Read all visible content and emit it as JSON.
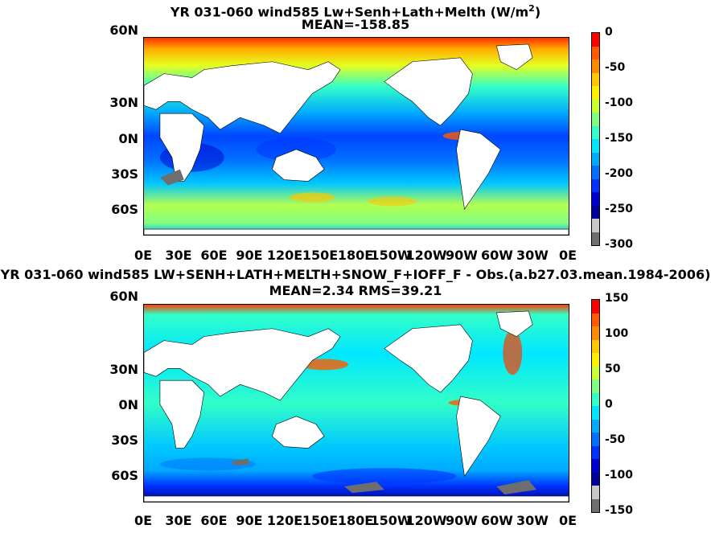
{
  "chart_data": [
    {
      "type": "heatmap",
      "title": "YR 031-060 wind585 Lw+Senh+Lath+Melth (W/m",
      "title_sup": "2",
      "title_tail": ")",
      "subtitle": "MEAN=-158.85",
      "xticks": [
        "0E",
        "30E",
        "60E",
        "90E",
        "120E",
        "150E",
        "180E",
        "150W",
        "120W",
        "90W",
        "60W",
        "30W",
        "0E"
      ],
      "yticks": [
        "60N",
        "30N",
        "0N",
        "30S",
        "60S"
      ],
      "colorbar_ticks": [
        "0",
        "-50",
        "-100",
        "-150",
        "-200",
        "-250",
        "-300"
      ],
      "zlim": [
        -300,
        0
      ],
      "colorbar_colors": [
        "#ff0000",
        "#ff5a00",
        "#ff8c00",
        "#ffc800",
        "#fff000",
        "#c8ff32",
        "#82ff82",
        "#32ffc8",
        "#00e6ff",
        "#00aaff",
        "#0070ff",
        "#0032ff",
        "#0000d2",
        "#00009b",
        "#c8c8c8",
        "#6e6e6e"
      ]
    },
    {
      "type": "heatmap",
      "title": "YR 031-060 wind585 LW+SENH+LATH+MELTH+SNOW_F+IOFF_F - Obs.(a.b27.03.mean.1984-2006)",
      "subtitle": "MEAN=2.34 RMS=39.21",
      "xticks": [
        "0E",
        "30E",
        "60E",
        "90E",
        "120E",
        "150E",
        "180E",
        "150W",
        "120W",
        "90W",
        "60W",
        "30W",
        "0E"
      ],
      "yticks": [
        "60N",
        "30N",
        "0N",
        "30S",
        "60S"
      ],
      "colorbar_ticks": [
        "150",
        "100",
        "50",
        "0",
        "-50",
        "-100",
        "-150"
      ],
      "zlim": [
        -150,
        150
      ],
      "colorbar_colors": [
        "#ff0000",
        "#ff5a00",
        "#ff8c00",
        "#ffc800",
        "#fff000",
        "#c8ff32",
        "#82ff82",
        "#32ffc8",
        "#00e6ff",
        "#00aaff",
        "#0070ff",
        "#0032ff",
        "#0000d2",
        "#00009b",
        "#c8c8c8",
        "#6e6e6e"
      ]
    }
  ]
}
